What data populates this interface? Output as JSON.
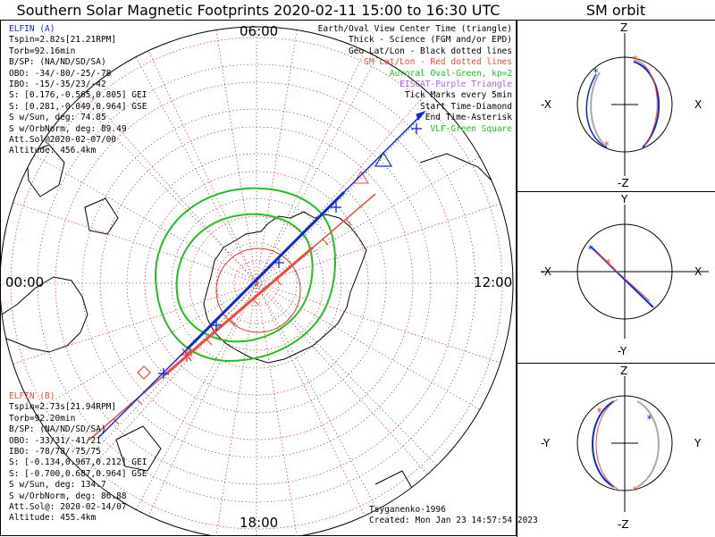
{
  "header": {
    "title": "Southern Solar Magnetic Footprints 2020-02-11 15:00 to 16:30 UTC",
    "orbit_title": "SM orbit"
  },
  "clock_labels": {
    "top": "06:00",
    "left": "00:00",
    "right": "12:00",
    "bottom": "18:00"
  },
  "elfin_a": {
    "name": "ELFIN (A)",
    "color": "#0a2ad8",
    "lines": [
      "Tspin=2.82s[21.21RPM]",
      "Torb=92.16min",
      "B/SP: (NA/ND/SD/SA)",
      "OBO: -34/-80/-25/-78",
      "IBO: -15/-35/23/-42",
      "S: [0.176,-0.565,0.805] GEI",
      "S: [0.281,-0.049,0.964] GSE",
      "S w/Sun, deg: 74.85",
      "S w/OrbNorm, deg: 89.49",
      "Att.Sol@2020-02-07/00",
      "Altitude: 456.4km"
    ]
  },
  "elfin_b": {
    "name": "ELFIN (B)",
    "color": "#f04a3a",
    "lines": [
      "Tspin=2.73s[21.94RPM]",
      "Torb=92.20min",
      "B/SP: (NA/ND/SD/SA)",
      "OBO: -33/31/-41/21",
      "IBO: -78/78/-75/75",
      "S: [-0.134,0.967,0.212] GEI",
      "S: [-0.700,0.687,0.964] GSE",
      "S w/Sun, deg: 134.7",
      "S w/OrbNorm, deg: 86.88",
      "Att.Sol@: 2020-02-14/07",
      "Altitude: 455.4km"
    ]
  },
  "legend": {
    "lines": [
      "Earth/Oval View Center Time (triangle)",
      "Thick - Science (FGM and/or EPD)",
      "Geo Lat/Lon - Black dotted lines",
      "SM Lat/Lon - Red dotted lines",
      "Auroral Oval-Green, kp=2",
      "EISCAT-Purple Triangle",
      "Tick Marks every 5min",
      "Start Time-Diamond",
      "End Time-Asterisk",
      "VLF-Green Square"
    ]
  },
  "footer": {
    "author": "Tsyganenko-1996",
    "created": "Created: Mon Jan 23 14:57:54 2023"
  },
  "sm_panels": [
    {
      "top": "Z",
      "bottom": "-Z",
      "left": "-X",
      "right": "X"
    },
    {
      "top": "Y",
      "bottom": "-Y",
      "left": "-X",
      "right": "X"
    },
    {
      "top": "Z",
      "bottom": "-Z",
      "left": "-Y",
      "right": "Y"
    }
  ],
  "colors": {
    "auroral_oval": "#20c020",
    "sm_grid": "#e03030",
    "geo_grid": "#000000"
  }
}
